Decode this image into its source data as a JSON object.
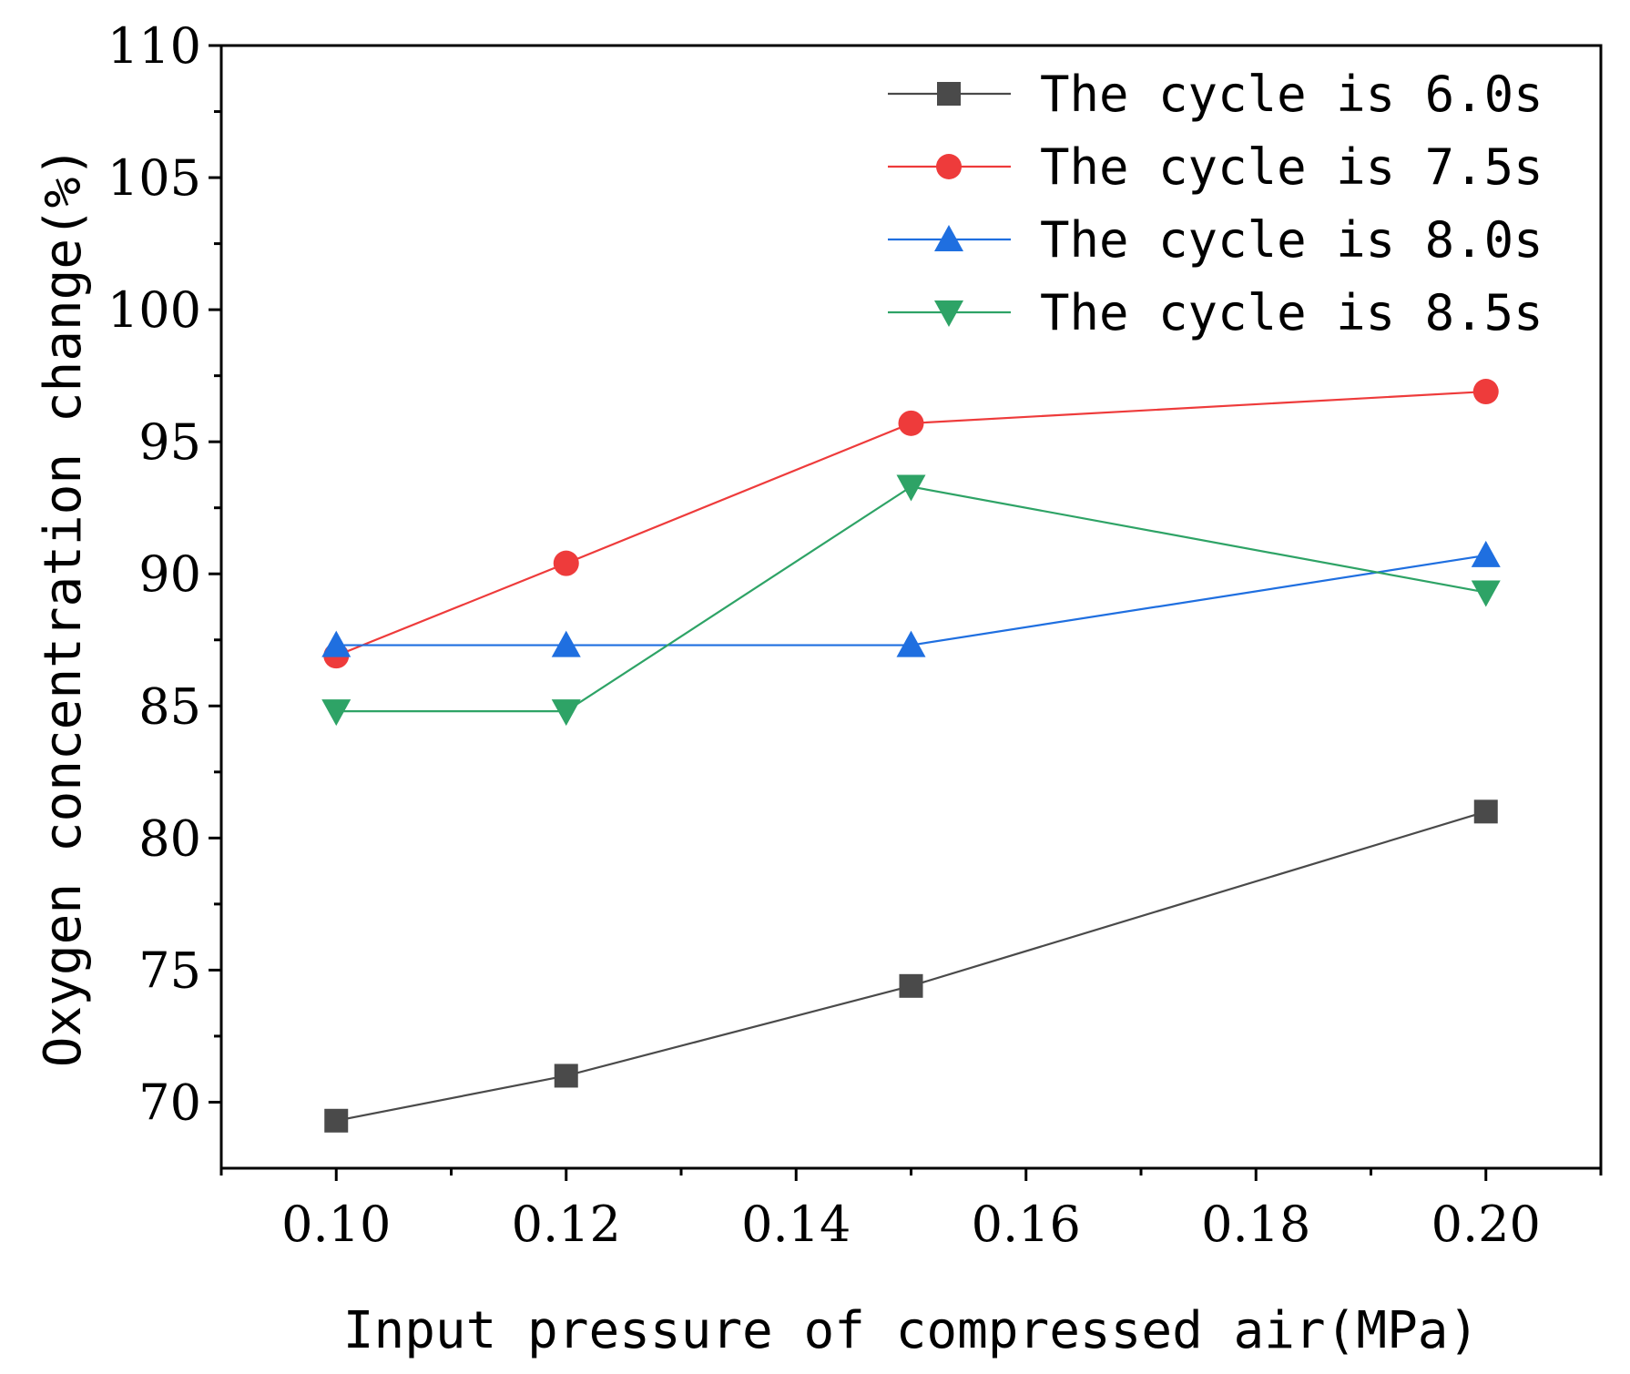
{
  "chart_data": {
    "type": "line",
    "title": "",
    "xlabel": "Input pressure of compressed air(MPa)",
    "ylabel": "Oxygen concentration change(%)",
    "xlim": [
      0.09,
      0.21
    ],
    "ylim": [
      67.5,
      110
    ],
    "x_ticks": [
      0.1,
      0.12,
      0.14,
      0.16,
      0.18,
      0.2
    ],
    "x_tick_labels": [
      "0.10",
      "0.12",
      "0.14",
      "0.16",
      "0.18",
      "0.20"
    ],
    "y_ticks": [
      70,
      75,
      80,
      85,
      90,
      95,
      100,
      105,
      110
    ],
    "y_tick_labels": [
      "70",
      "75",
      "80",
      "85",
      "90",
      "95",
      "100",
      "105",
      "110"
    ],
    "grid": false,
    "legend_position": "top-right",
    "x": [
      0.1,
      0.12,
      0.15,
      0.2
    ],
    "series": [
      {
        "name": "The cycle is 6.0s",
        "marker": "square",
        "color": "#4a4a4a",
        "values": [
          69.3,
          71.0,
          74.4,
          81.0
        ]
      },
      {
        "name": "The cycle is 7.5s",
        "marker": "circle",
        "color": "#ee3b3b",
        "values": [
          86.9,
          90.4,
          95.7,
          96.9
        ]
      },
      {
        "name": "The cycle is 8.0s",
        "marker": "triangle-up",
        "color": "#1f6fe0",
        "values": [
          87.3,
          87.3,
          87.3,
          90.7
        ]
      },
      {
        "name": "The cycle is 8.5s",
        "marker": "triangle-down",
        "color": "#2ea366",
        "values": [
          84.8,
          84.8,
          93.3,
          89.3
        ]
      }
    ]
  }
}
